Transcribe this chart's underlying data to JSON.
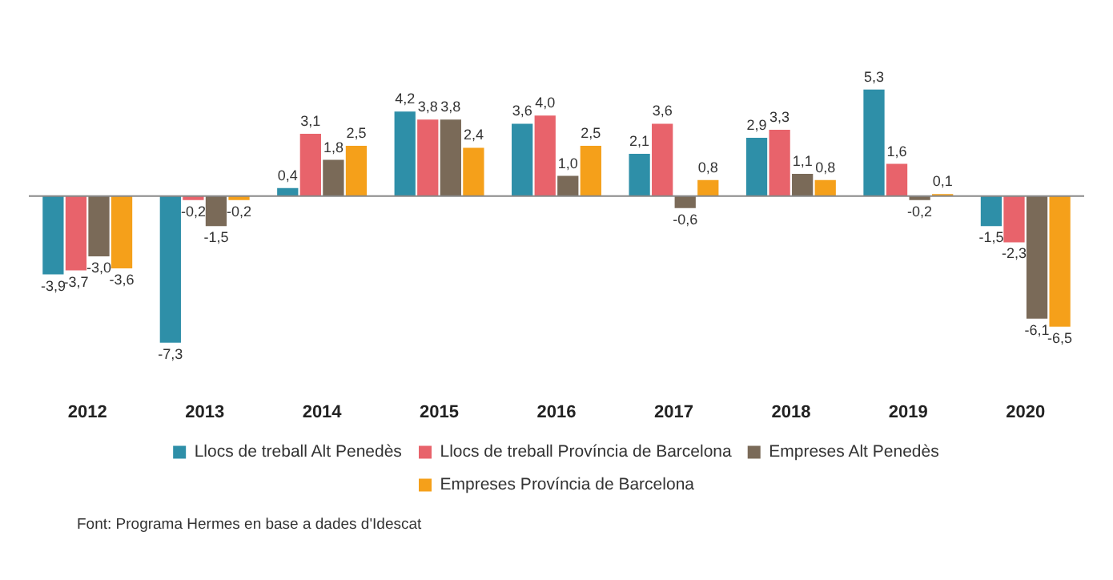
{
  "chart_data": {
    "type": "bar",
    "categories": [
      "2012",
      "2013",
      "2014",
      "2015",
      "2016",
      "2017",
      "2018",
      "2019",
      "2020"
    ],
    "series": [
      {
        "name": "Llocs de treball Alt Penedès",
        "color": "#2e8fa8",
        "values": [
          -3.9,
          -7.3,
          0.4,
          4.2,
          3.6,
          2.1,
          2.9,
          5.3,
          -1.5
        ],
        "value_labels": [
          "-3,9",
          "-7,3",
          "0,4",
          "4,2",
          "3,6",
          "2,1",
          "2,9",
          "5,3",
          "-1,5"
        ]
      },
      {
        "name": "Llocs de treball Província de Barcelona",
        "color": "#e8636b",
        "values": [
          -3.7,
          -0.2,
          3.1,
          3.8,
          4.0,
          3.6,
          3.3,
          1.6,
          -2.3
        ],
        "value_labels": [
          "-3,7",
          "-0,2",
          "3,1",
          "3,8",
          "4,0",
          "3,6",
          "3,3",
          "1,6",
          "-2,3"
        ]
      },
      {
        "name": "Empreses Alt Penedès",
        "color": "#7a6a58",
        "values": [
          -3.0,
          -1.5,
          1.8,
          3.8,
          1.0,
          -0.6,
          1.1,
          -0.2,
          -6.1
        ],
        "value_labels": [
          "-3,0",
          "-1,5",
          "1,8",
          "3,8",
          "1,0",
          "-0,6",
          "1,1",
          "-0,2",
          "-6,1"
        ]
      },
      {
        "name": "Empreses Província de Barcelona",
        "color": "#f5a01a",
        "values": [
          -3.6,
          -0.2,
          2.5,
          2.4,
          2.5,
          0.8,
          0.8,
          0.1,
          -6.5
        ],
        "value_labels": [
          "-3,6",
          "-0,2",
          "2,5",
          "2,4",
          "2,5",
          "0,8",
          "0,8",
          "0,1",
          "-6,5"
        ]
      }
    ],
    "legend": "bottom",
    "grid": false,
    "annotations": [
      "Font: Programa Hermes en base a dades d'Idescat"
    ]
  }
}
